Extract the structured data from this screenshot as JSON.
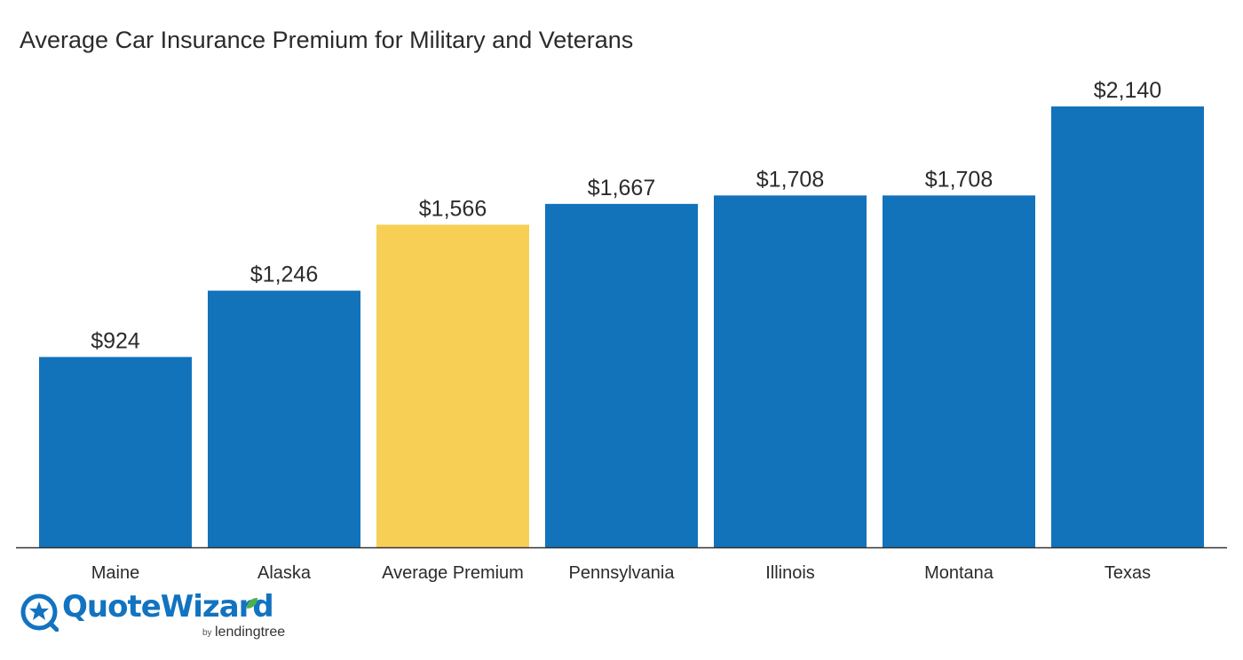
{
  "chart_data": {
    "type": "bar",
    "title": "Average Car Insurance Premium for Military and Veterans",
    "categories": [
      "Maine",
      "Alaska",
      "Average Premium",
      "Pennsylvania",
      "Illinois",
      "Montana",
      "Texas"
    ],
    "values": [
      924,
      1246,
      1566,
      1667,
      1708,
      1708,
      2140
    ],
    "value_labels": [
      "$924",
      "$1,246",
      "$1,566",
      "$1,667",
      "$1,708",
      "$1,708",
      "$2,140"
    ],
    "highlight_category": "Average Premium",
    "colors": {
      "bar": "#1273bb",
      "highlight": "#f8cf55",
      "axis": "#333333",
      "text": "#2b2b2b"
    },
    "xlabel": "",
    "ylabel": "",
    "ylim": [
      0,
      2140
    ],
    "grid": false,
    "legend": "none"
  },
  "brand": {
    "name": "QuoteWizard",
    "by": "by",
    "parent": "lendingtree",
    "mark_icon": "quotewizard-star-icon",
    "leaf_icon": "leaf-icon"
  }
}
